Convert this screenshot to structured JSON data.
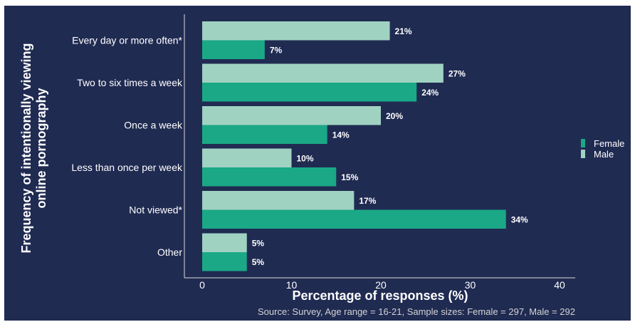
{
  "chart_data": {
    "type": "bar",
    "orientation": "horizontal",
    "title": "",
    "xlabel": "Percentage of responses (%)",
    "ylabel": "Frequency of intentionally viewing online pornography",
    "caption": "Source: Survey, Age range = 16-21, Sample sizes: Female = 297, Male = 292",
    "xlim": [
      0,
      40
    ],
    "xticks": [
      0,
      10,
      20,
      30,
      40
    ],
    "grid": false,
    "legend_position": "right",
    "categories": [
      "Every day or more often*",
      "Two to six times a week",
      "Once a week",
      "Less than once per week",
      "Not viewed*",
      "Other"
    ],
    "series": [
      {
        "name": "Male",
        "color": "#a0d2c2",
        "values": [
          21,
          27,
          20,
          10,
          17,
          5
        ],
        "labels": [
          "21%",
          "27%",
          "20%",
          "10%",
          "17%",
          "5%"
        ]
      },
      {
        "name": "Female",
        "color": "#1aa886",
        "values": [
          7,
          24,
          14,
          15,
          34,
          5
        ],
        "labels": [
          "7%",
          "24%",
          "14%",
          "15%",
          "34%",
          "5%"
        ]
      }
    ],
    "legend_order": [
      "Female",
      "Male"
    ]
  },
  "colors": {
    "background": "#202b52",
    "axis": "#d9d9d9",
    "text": "#ffffff",
    "caption": "#d3d3d3"
  }
}
